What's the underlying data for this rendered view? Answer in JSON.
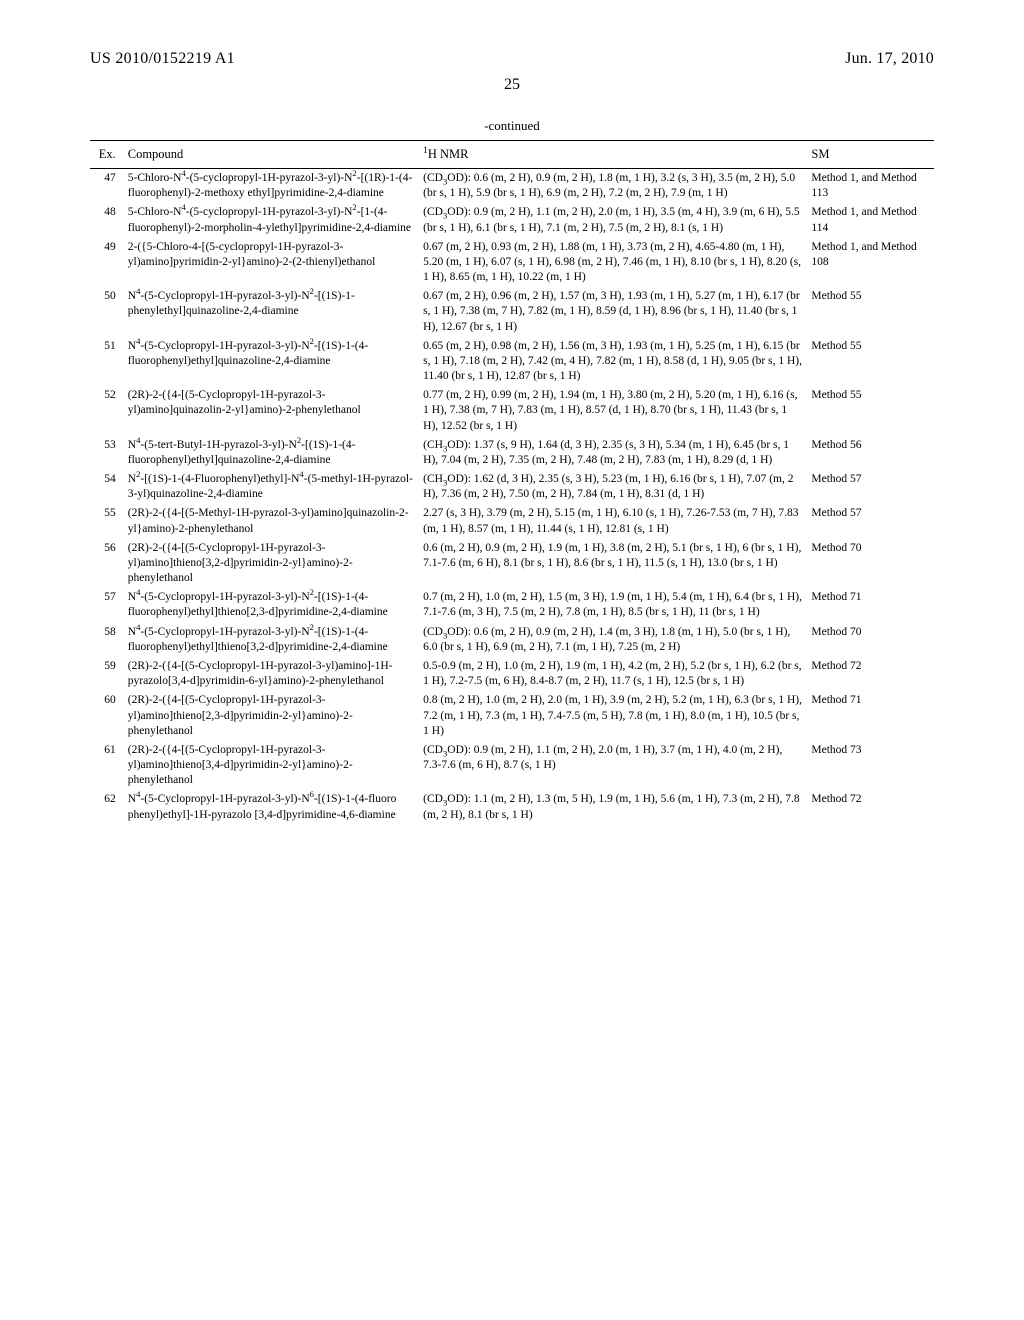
{
  "header": {
    "left": "US 2010/0152219 A1",
    "right": "Jun. 17, 2010",
    "page_number": "25",
    "continued": "-continued"
  },
  "table": {
    "columns": {
      "ex": "Ex.",
      "compound": "Compound",
      "nmr_html": "<sup>1</sup>H NMR",
      "sm": "SM"
    },
    "rows": [
      {
        "ex": "47",
        "compound_html": "5-Chloro-N<sup>4</sup>-(5-cyclopropyl-1H-pyrazol-3-yl)-N<sup>2</sup>-[(1R)-1-(4-fluorophenyl)-2-methoxy ethyl]pyrimidine-2,4-diamine",
        "nmr_html": "(CD<sub>3</sub>OD): 0.6 (m, 2 H), 0.9 (m, 2 H), 1.8 (m, 1 H), 3.2 (s, 3 H), 3.5 (m, 2 H), 5.0 (br s, 1 H), 5.9 (br s, 1 H), 6.9 (m, 2 H), 7.2 (m, 2 H), 7.9 (m, 1 H)",
        "sm": "Method 1, and Method 113"
      },
      {
        "ex": "48",
        "compound_html": "5-Chloro-N<sup>4</sup>-(5-cyclopropyl-1H-pyrazol-3-yl)-N<sup>2</sup>-[1-(4-fluorophenyl)-2-morpholin-4-ylethyl]pyrimidine-2,4-diamine",
        "nmr_html": "(CD<sub>3</sub>OD): 0.9 (m, 2 H), 1.1 (m, 2 H), 2.0 (m, 1 H), 3.5 (m, 4 H), 3.9 (m, 6 H), 5.5 (br s, 1 H), 6.1 (br s, 1 H), 7.1 (m, 2 H), 7.5 (m, 2 H), 8.1 (s, 1 H)",
        "sm": "Method 1, and Method 114"
      },
      {
        "ex": "49",
        "compound_html": "2-({5-Chloro-4-[(5-cyclopropyl-1H-pyrazol-3-yl)amino]pyrimidin-2-yl}amino)-2-(2-thienyl)ethanol",
        "nmr_html": "0.67 (m, 2 H), 0.93 (m, 2 H), 1.88 (m, 1 H), 3.73 (m, 2 H), 4.65-4.80 (m, 1 H), 5.20 (m, 1 H), 6.07 (s, 1 H), 6.98 (m, 2 H), 7.46 (m, 1 H), 8.10 (br s, 1 H), 8.20 (s, 1 H), 8.65 (m, 1 H), 10.22 (m, 1 H)",
        "sm": "Method 1, and Method 108"
      },
      {
        "ex": "50",
        "compound_html": "N<sup>4</sup>-(5-Cyclopropyl-1H-pyrazol-3-yl)-N<sup>2</sup>-[(1S)-1-phenylethyl]quinazoline-2,4-diamine",
        "nmr_html": "0.67 (m, 2 H), 0.96 (m, 2 H), 1.57 (m, 3 H), 1.93 (m, 1 H), 5.27 (m, 1 H), 6.17 (br s, 1 H), 7.38 (m, 7 H), 7.82 (m, 1 H), 8.59 (d, 1 H), 8.96 (br s, 1 H), 11.40 (br s, 1 H), 12.67 (br s, 1 H)",
        "sm": "Method 55"
      },
      {
        "ex": "51",
        "compound_html": "N<sup>4</sup>-(5-Cyclopropyl-1H-pyrazol-3-yl)-N<sup>2</sup>-[(1S)-1-(4-fluorophenyl)ethyl]quinazoline-2,4-diamine",
        "nmr_html": "0.65 (m, 2 H), 0.98 (m, 2 H), 1.56 (m, 3 H), 1.93 (m, 1 H), 5.25 (m, 1 H), 6.15 (br s, 1 H), 7.18 (m, 2 H), 7.42 (m, 4 H), 7.82 (m, 1 H), 8.58 (d, 1 H), 9.05 (br s, 1 H), 11.40 (br s, 1 H), 12.87 (br s, 1 H)",
        "sm": "Method 55"
      },
      {
        "ex": "52",
        "compound_html": "(2R)-2-({4-[(5-Cyclopropyl-1H-pyrazol-3-yl)amino]quinazolin-2-yl}amino)-2-phenylethanol",
        "nmr_html": "0.77 (m, 2 H), 0.99 (m, 2 H), 1.94 (m, 1 H), 3.80 (m, 2 H), 5.20 (m, 1 H), 6.16 (s, 1 H), 7.38 (m, 7 H), 7.83 (m, 1 H), 8.57 (d, 1 H), 8.70 (br s, 1 H), 11.43 (br s, 1 H), 12.52 (br s, 1 H)",
        "sm": "Method 55"
      },
      {
        "ex": "53",
        "compound_html": "N<sup>4</sup>-(5-tert-Butyl-1H-pyrazol-3-yl)-N<sup>2</sup>-[(1S)-1-(4-fluorophenyl)ethyl]quinazoline-2,4-diamine",
        "nmr_html": "(CH<sub>3</sub>OD): 1.37 (s, 9 H), 1.64 (d, 3 H), 2.35 (s, 3 H), 5.34 (m, 1 H), 6.45 (br s, 1 H), 7.04 (m, 2 H), 7.35 (m, 2 H), 7.48 (m, 2 H), 7.83 (m, 1 H), 8.29 (d, 1 H)",
        "sm": "Method 56"
      },
      {
        "ex": "54",
        "compound_html": "N<sup>2</sup>-[(1S)-1-(4-Fluorophenyl)ethyl]-N<sup>4</sup>-(5-methyl-1H-pyrazol-3-yl)quinazoline-2,4-diamine",
        "nmr_html": "(CH<sub>3</sub>OD): 1.62 (d, 3 H), 2.35 (s, 3 H), 5.23 (m, 1 H), 6.16 (br s, 1 H), 7.07 (m, 2 H), 7.36 (m, 2 H), 7.50 (m, 2 H), 7.84 (m, 1 H), 8.31 (d, 1 H)",
        "sm": "Method 57"
      },
      {
        "ex": "55",
        "compound_html": "(2R)-2-({4-[(5-Methyl-1H-pyrazol-3-yl)amino]quinazolin-2-yl}amino)-2-phenylethanol",
        "nmr_html": "2.27 (s, 3 H), 3.79 (m, 2 H), 5.15 (m, 1 H), 6.10 (s, 1 H), 7.26-7.53 (m, 7 H), 7.83 (m, 1 H), 8.57 (m, 1 H), 11.44 (s, 1 H), 12.81 (s, 1 H)",
        "sm": "Method 57"
      },
      {
        "ex": "56",
        "compound_html": "(2R)-2-({4-[(5-Cyclopropyl-1H-pyrazol-3-yl)amino]thieno[3,2-d]pyrimidin-2-yl}amino)-2-phenylethanol",
        "nmr_html": "0.6 (m, 2 H), 0.9 (m, 2 H), 1.9 (m, 1 H), 3.8 (m, 2 H), 5.1 (br s, 1 H), 6 (br s, 1 H), 7.1-7.6 (m, 6 H), 8.1 (br s, 1 H), 8.6 (br s, 1 H), 11.5 (s, 1 H), 13.0 (br s, 1 H)",
        "sm": "Method 70"
      },
      {
        "ex": "57",
        "compound_html": "N<sup>4</sup>-(5-Cyclopropyl-1H-pyrazol-3-yl)-N<sup>2</sup>-[(1S)-1-(4-fluorophenyl)ethyl]thieno[2,3-d]pyrimidine-2,4-diamine",
        "nmr_html": "0.7 (m, 2 H), 1.0 (m, 2 H), 1.5 (m, 3 H), 1.9 (m, 1 H), 5.4 (m, 1 H), 6.4 (br s, 1 H), 7.1-7.6 (m, 3 H), 7.5 (m, 2 H), 7.8 (m, 1 H), 8.5 (br s, 1 H), 11 (br s, 1 H)",
        "sm": "Method 71"
      },
      {
        "ex": "58",
        "compound_html": "N<sup>4</sup>-(5-Cyclopropyl-1H-pyrazol-3-yl)-N<sup>2</sup>-[(1S)-1-(4-fluorophenyl)ethyl]thieno[3,2-d]pyrimidine-2,4-diamine",
        "nmr_html": "(CD<sub>3</sub>OD): 0.6 (m, 2 H), 0.9 (m, 2 H), 1.4 (m, 3 H), 1.8 (m, 1 H), 5.0 (br s, 1 H), 6.0 (br s, 1 H), 6.9 (m, 2 H), 7.1 (m, 1 H), 7.25 (m, 2 H)",
        "sm": "Method 70"
      },
      {
        "ex": "59",
        "compound_html": "(2R)-2-({4-[(5-Cyclopropyl-1H-pyrazol-3-yl)amino]-1H-pyrazolo[3,4-d]pyrimidin-6-yl}amino)-2-phenylethanol",
        "nmr_html": "0.5-0.9 (m, 2 H), 1.0 (m, 2 H), 1.9 (m, 1 H), 4.2 (m, 2 H), 5.2 (br s, 1 H), 6.2 (br s, 1 H), 7.2-7.5 (m, 6 H), 8.4-8.7 (m, 2 H), 11.7 (s, 1 H), 12.5 (br s, 1 H)",
        "sm": "Method 72"
      },
      {
        "ex": "60",
        "compound_html": "(2R)-2-({4-[(5-Cyclopropyl-1H-pyrazol-3-yl)amino]thieno[2,3-d]pyrimidin-2-yl}amino)-2-phenylethanol",
        "nmr_html": "0.8 (m, 2 H), 1.0 (m, 2 H), 2.0 (m, 1 H), 3.9 (m, 2 H), 5.2 (m, 1 H), 6.3 (br s, 1 H), 7.2 (m, 1 H), 7.3 (m, 1 H), 7.4-7.5 (m, 5 H), 7.8 (m, 1 H), 8.0 (m, 1 H), 10.5 (br s, 1 H)",
        "sm": "Method 71"
      },
      {
        "ex": "61",
        "compound_html": "(2R)-2-({4-[(5-Cyclopropyl-1H-pyrazol-3-yl)amino]thieno[3,4-d]pyrimidin-2-yl}amino)-2-phenylethanol",
        "nmr_html": "(CD<sub>3</sub>OD): 0.9 (m, 2 H), 1.1 (m, 2 H), 2.0 (m, 1 H), 3.7 (m, 1 H), 4.0 (m, 2 H), 7.3-7.6 (m, 6 H), 8.7 (s, 1 H)",
        "sm": "Method 73"
      },
      {
        "ex": "62",
        "compound_html": "N<sup>4</sup>-(5-Cyclopropyl-1H-pyrazol-3-yl)-N<sup>6</sup>-[(1S)-1-(4-fluoro phenyl)ethyl]-1H-pyrazolo [3,4-d]pyrimidine-4,6-diamine",
        "nmr_html": "(CD<sub>3</sub>OD): 1.1 (m, 2 H), 1.3 (m, 5 H), 1.9 (m, 1 H), 5.6 (m, 1 H), 7.3 (m, 2 H), 7.8 (m, 2 H), 8.1 (br s, 1 H)",
        "sm": "Method 72"
      }
    ]
  }
}
